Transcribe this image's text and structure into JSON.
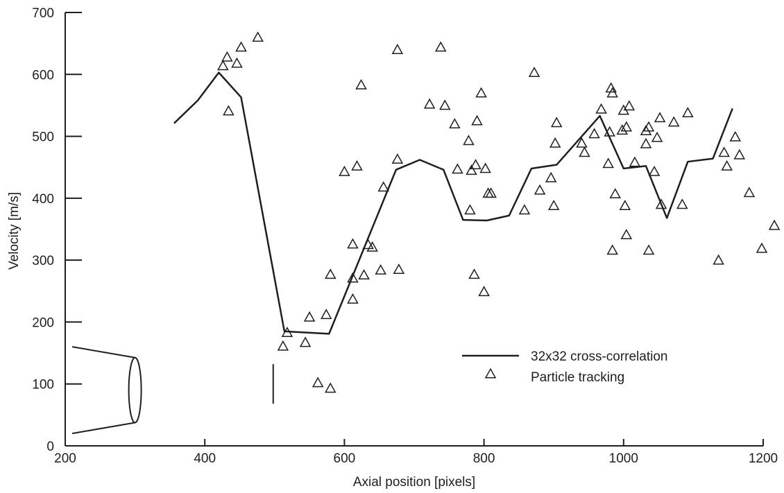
{
  "chart_data": {
    "type": "line",
    "title": "",
    "xlabel": "Axial position [pixels]",
    "ylabel": "Velocity [m/s]",
    "xlim": [
      200,
      1200
    ],
    "ylim": [
      0,
      700
    ],
    "x_ticks": [
      "200",
      "400",
      "600",
      "800",
      "1000",
      "1200"
    ],
    "y_ticks": [
      "0",
      "100",
      "200",
      "300",
      "400",
      "500",
      "600",
      "700"
    ],
    "grid": false,
    "legend_position": "lower-right",
    "series": [
      {
        "name": "32x32 cross-correlation",
        "type": "line",
        "color": "#1e1e1e",
        "points": [
          [
            356,
            521
          ],
          [
            390,
            558
          ],
          [
            420,
            603
          ],
          [
            452,
            563
          ],
          [
            514,
            185
          ],
          [
            578,
            181
          ],
          [
            674,
            446
          ],
          [
            708,
            462
          ],
          [
            742,
            446
          ],
          [
            770,
            365
          ],
          [
            804,
            364
          ],
          [
            836,
            372
          ],
          [
            868,
            448
          ],
          [
            904,
            454
          ],
          [
            966,
            533
          ],
          [
            1000,
            448
          ],
          [
            1032,
            452
          ],
          [
            1062,
            368
          ],
          [
            1092,
            459
          ],
          [
            1128,
            464
          ],
          [
            1156,
            545
          ]
        ]
      },
      {
        "name": "Particle tracking",
        "type": "scatter",
        "marker": "triangle-open",
        "color": "#1e1e1e",
        "points": [
          [
            426,
            613
          ],
          [
            432,
            627
          ],
          [
            446,
            617
          ],
          [
            452,
            643
          ],
          [
            476,
            659
          ],
          [
            434,
            540
          ],
          [
            512,
            160
          ],
          [
            518,
            182
          ],
          [
            544,
            166
          ],
          [
            550,
            207
          ],
          [
            562,
            101
          ],
          [
            574,
            211
          ],
          [
            580,
            92
          ],
          [
            580,
            276
          ],
          [
            600,
            442
          ],
          [
            612,
            325
          ],
          [
            612,
            270
          ],
          [
            612,
            236
          ],
          [
            618,
            451
          ],
          [
            624,
            582
          ],
          [
            628,
            275
          ],
          [
            634,
            324
          ],
          [
            640,
            320
          ],
          [
            652,
            283
          ],
          [
            656,
            417
          ],
          [
            676,
            639
          ],
          [
            676,
            462
          ],
          [
            678,
            284
          ],
          [
            722,
            551
          ],
          [
            738,
            643
          ],
          [
            744,
            549
          ],
          [
            758,
            519
          ],
          [
            762,
            446
          ],
          [
            778,
            492
          ],
          [
            780,
            380
          ],
          [
            782,
            444
          ],
          [
            786,
            276
          ],
          [
            788,
            453
          ],
          [
            790,
            524
          ],
          [
            796,
            569
          ],
          [
            800,
            248
          ],
          [
            802,
            447
          ],
          [
            806,
            407
          ],
          [
            810,
            407
          ],
          [
            858,
            380
          ],
          [
            872,
            602
          ],
          [
            880,
            412
          ],
          [
            896,
            432
          ],
          [
            900,
            387
          ],
          [
            902,
            488
          ],
          [
            904,
            521
          ],
          [
            940,
            488
          ],
          [
            944,
            473
          ],
          [
            958,
            503
          ],
          [
            968,
            543
          ],
          [
            978,
            455
          ],
          [
            980,
            506
          ],
          [
            982,
            577
          ],
          [
            984,
            569
          ],
          [
            984,
            315
          ],
          [
            988,
            406
          ],
          [
            998,
            509
          ],
          [
            1000,
            541
          ],
          [
            1002,
            387
          ],
          [
            1004,
            514
          ],
          [
            1004,
            340
          ],
          [
            1008,
            548
          ],
          [
            1016,
            457
          ],
          [
            1032,
            508
          ],
          [
            1032,
            487
          ],
          [
            1036,
            514
          ],
          [
            1036,
            315
          ],
          [
            1044,
            442
          ],
          [
            1048,
            497
          ],
          [
            1052,
            529
          ],
          [
            1054,
            389
          ],
          [
            1072,
            522
          ],
          [
            1084,
            389
          ],
          [
            1092,
            537
          ],
          [
            1136,
            299
          ],
          [
            1144,
            473
          ],
          [
            1148,
            451
          ],
          [
            1160,
            498
          ],
          [
            1166,
            469
          ],
          [
            1180,
            408
          ],
          [
            1198,
            318
          ],
          [
            1216,
            355
          ]
        ]
      }
    ],
    "annotations": [
      {
        "kind": "nozzle-sketch",
        "x_range": [
          210,
          300
        ],
        "y_range": [
          20,
          160
        ]
      },
      {
        "kind": "vertical-marker",
        "x": 498,
        "y_range": [
          68,
          132
        ]
      }
    ]
  }
}
